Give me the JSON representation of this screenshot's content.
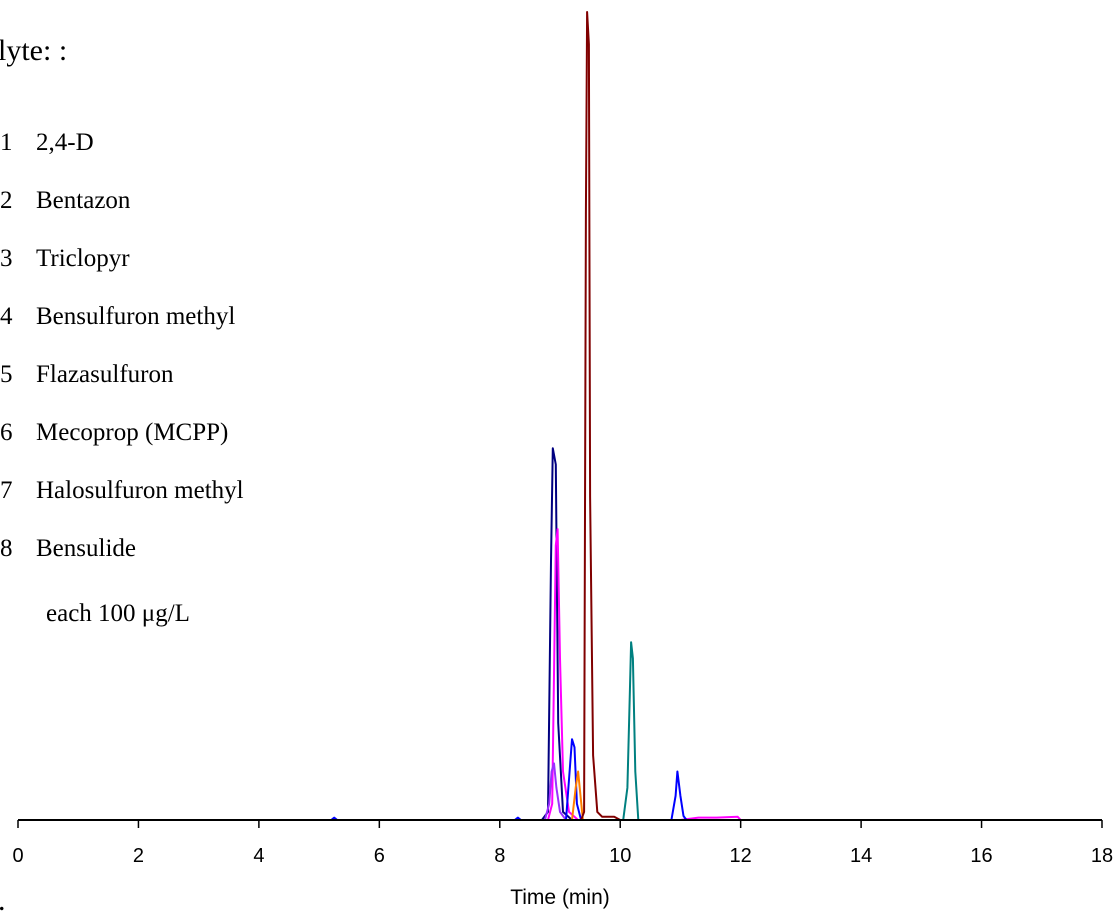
{
  "chart_data": {
    "type": "line",
    "xlabel": "Time (min)",
    "ylabel": "",
    "xlim": [
      0,
      18
    ],
    "ylim": [
      0,
      100
    ],
    "x_ticks": [
      "0",
      "2",
      "4",
      "6",
      "8",
      "10",
      "12",
      "14",
      "16",
      "18"
    ],
    "grid": false,
    "legend": {
      "header": "lyte: :",
      "entries": [
        {
          "num": "1",
          "name": "2,4-D"
        },
        {
          "num": "2",
          "name": "Bentazon"
        },
        {
          "num": "3",
          "name": "Triclopyr"
        },
        {
          "num": "4",
          "name": "Bensulfuron methyl"
        },
        {
          "num": "5",
          "name": "Flazasulfuron"
        },
        {
          "num": "6",
          "name": "Mecoprop (MCPP)"
        },
        {
          "num": "7",
          "name": "Halosulfuron methyl"
        },
        {
          "num": "8",
          "name": "Bensulide"
        }
      ],
      "concentration": "each 100 μg/L"
    },
    "footer_mark": ".",
    "series": [
      {
        "color": "#000080",
        "points": [
          [
            0,
            0
          ],
          [
            8.7,
            0
          ],
          [
            8.8,
            1
          ],
          [
            8.85,
            32
          ],
          [
            8.88,
            46
          ],
          [
            8.93,
            44
          ],
          [
            8.97,
            12
          ],
          [
            9.05,
            1
          ],
          [
            9.2,
            0
          ],
          [
            16,
            0
          ]
        ]
      },
      {
        "color": "#ff00ff",
        "points": [
          [
            0,
            0
          ],
          [
            8.8,
            0
          ],
          [
            8.87,
            2
          ],
          [
            8.93,
            34
          ],
          [
            8.96,
            36
          ],
          [
            9.0,
            20
          ],
          [
            9.05,
            6
          ],
          [
            9.15,
            1
          ],
          [
            9.3,
            0
          ],
          [
            11.0,
            0
          ],
          [
            11.3,
            0.3
          ],
          [
            11.6,
            0.3
          ],
          [
            11.95,
            0.4
          ],
          [
            12.0,
            0
          ],
          [
            16,
            0
          ]
        ]
      },
      {
        "color": "#9b30ff",
        "points": [
          [
            0,
            0
          ],
          [
            8.75,
            0
          ],
          [
            8.82,
            2
          ],
          [
            8.86,
            6
          ],
          [
            8.9,
            7
          ],
          [
            8.94,
            4
          ],
          [
            9.0,
            1
          ],
          [
            9.1,
            0
          ],
          [
            16,
            0
          ]
        ]
      },
      {
        "color": "#0000ff",
        "points": [
          [
            0,
            0
          ],
          [
            5.2,
            0
          ],
          [
            5.25,
            0.3
          ],
          [
            5.3,
            0
          ],
          [
            8.25,
            0
          ],
          [
            8.3,
            0.3
          ],
          [
            8.35,
            0
          ],
          [
            9.1,
            0
          ],
          [
            9.17,
            7
          ],
          [
            9.2,
            10
          ],
          [
            9.24,
            9
          ],
          [
            9.28,
            2
          ],
          [
            9.35,
            0
          ],
          [
            10.85,
            0
          ],
          [
            10.92,
            3
          ],
          [
            10.95,
            6
          ],
          [
            11.0,
            3
          ],
          [
            11.05,
            0.5
          ],
          [
            11.1,
            0
          ],
          [
            16,
            0
          ]
        ]
      },
      {
        "color": "#ff7f00",
        "points": [
          [
            0,
            0
          ],
          [
            9.2,
            0
          ],
          [
            9.26,
            4
          ],
          [
            9.3,
            6
          ],
          [
            9.34,
            3
          ],
          [
            9.38,
            0
          ],
          [
            16,
            0
          ]
        ]
      },
      {
        "color": "#800000",
        "points": [
          [
            0,
            0
          ],
          [
            9.35,
            0
          ],
          [
            9.4,
            1
          ],
          [
            9.43,
            75
          ],
          [
            9.45,
            100
          ],
          [
            9.48,
            96
          ],
          [
            9.5,
            40
          ],
          [
            9.55,
            8
          ],
          [
            9.62,
            1
          ],
          [
            9.7,
            0.4
          ],
          [
            9.9,
            0.4
          ],
          [
            10.0,
            0
          ],
          [
            16,
            0
          ]
        ]
      },
      {
        "color": "#008080",
        "points": [
          [
            0,
            0
          ],
          [
            10.05,
            0
          ],
          [
            10.12,
            4
          ],
          [
            10.16,
            16
          ],
          [
            10.18,
            22
          ],
          [
            10.21,
            20
          ],
          [
            10.25,
            6
          ],
          [
            10.3,
            0
          ],
          [
            16,
            0
          ]
        ]
      }
    ]
  }
}
